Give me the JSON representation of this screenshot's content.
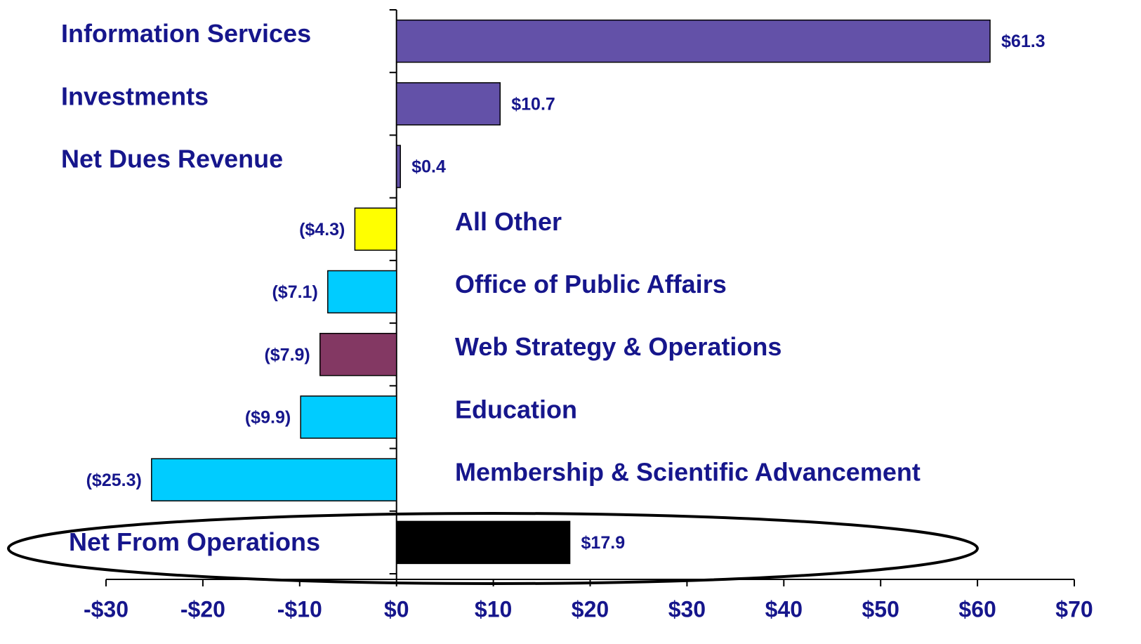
{
  "chart_data": {
    "type": "bar",
    "orientation": "horizontal",
    "categories": [
      "Information Services",
      "Investments",
      "Net Dues Revenue",
      "All Other",
      "Office of Public Affairs",
      "Web Strategy & Operations",
      "Education",
      "Membership & Scientific Advancement",
      "Net From Operations"
    ],
    "values": [
      61.3,
      10.7,
      0.4,
      -4.3,
      -7.1,
      -7.9,
      -9.9,
      -25.3,
      17.9
    ],
    "value_labels": [
      "$61.3",
      "$10.7",
      "$0.4",
      "($4.3)",
      "($7.1)",
      "($7.9)",
      "($9.9)",
      "($25.3)",
      "$17.9"
    ],
    "colors": [
      "#6351a8",
      "#6351a8",
      "#6351a8",
      "#ffff00",
      "#00ccff",
      "#833863",
      "#00ccff",
      "#00ccff",
      "#000000"
    ],
    "xlim": [
      -30,
      70
    ],
    "xticks": [
      {
        "value": -30,
        "label": "-$30"
      },
      {
        "value": -20,
        "label": "-$20"
      },
      {
        "value": -10,
        "label": "-$10"
      },
      {
        "value": 0,
        "label": "$0"
      },
      {
        "value": 10,
        "label": "$10"
      },
      {
        "value": 20,
        "label": "$20"
      },
      {
        "value": 30,
        "label": "$30"
      },
      {
        "value": 40,
        "label": "$40"
      },
      {
        "value": 50,
        "label": "$50"
      },
      {
        "value": 60,
        "label": "$60"
      },
      {
        "value": 70,
        "label": "$70"
      }
    ]
  }
}
